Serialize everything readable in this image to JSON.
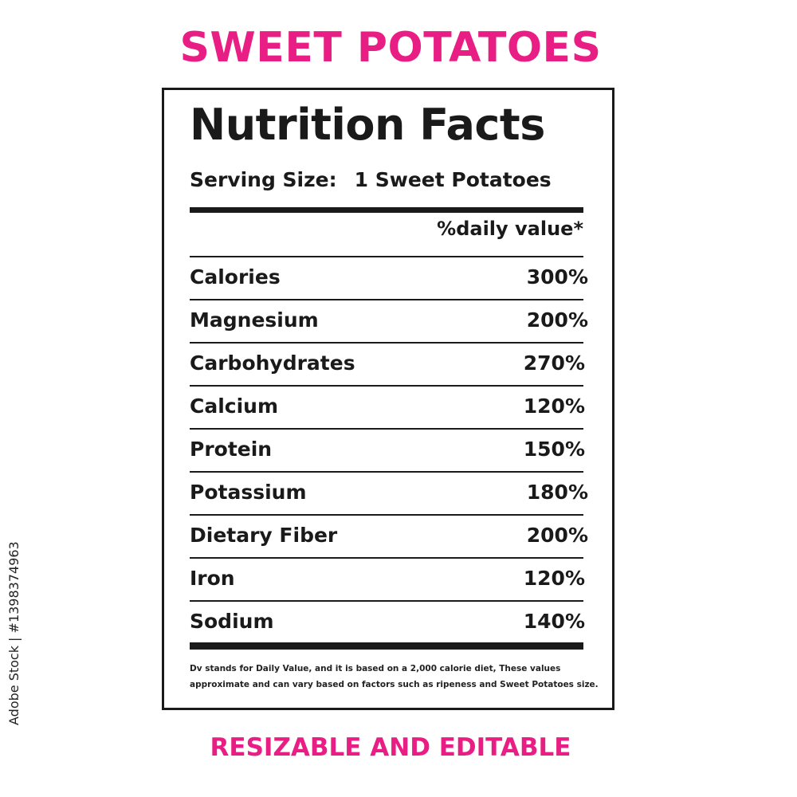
{
  "colors": {
    "accent": "#e91e84",
    "text": "#1a1a1a"
  },
  "top_title": "SWEET POTATOES",
  "label": {
    "heading": "Nutrition Facts",
    "serving_label": "Serving Size:",
    "serving_value": "1 Sweet Potatoes",
    "dv_header": "%daily value*",
    "nutrients": [
      {
        "name": "Calories",
        "value": "300%"
      },
      {
        "name": "Magnesium",
        "value": "200%"
      },
      {
        "name": "Carbohydrates",
        "value": "270%"
      },
      {
        "name": "Calcium",
        "value": "120%"
      },
      {
        "name": "Protein",
        "value": "150%"
      },
      {
        "name": "Potassium",
        "value": "180%"
      },
      {
        "name": "Dietary Fiber",
        "value": "200%"
      },
      {
        "name": "Iron",
        "value": "120%"
      },
      {
        "name": "Sodium",
        "value": "140%"
      }
    ],
    "footnote_line1": "Dv stands for Daily Value, and it is based on a 2,000 calorie diet, These values",
    "footnote_line2": "approximate and can vary based on factors such as ripeness and Sweet Potatoes size."
  },
  "bottom_title": "RESIZABLE AND EDITABLE",
  "side_id": "Adobe Stock | #1398374963"
}
